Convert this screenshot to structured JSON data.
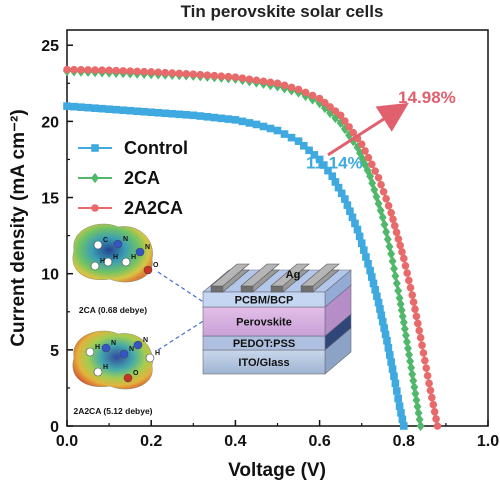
{
  "chart_data": {
    "type": "line",
    "title": "Tin perovskite solar cells",
    "xlabel": "Voltage (V)",
    "ylabel": "Current density (mA cm⁻²)",
    "xlim": [
      0,
      1.0
    ],
    "ylim": [
      0,
      26
    ],
    "xticks": [
      "0.0",
      "0.2",
      "0.4",
      "0.6",
      "0.8",
      "1.0"
    ],
    "yticks": [
      "0",
      "5",
      "10",
      "15",
      "20",
      "25"
    ],
    "grid": false,
    "legend_position": "top-left",
    "series": [
      {
        "name": "Control",
        "color": "#3fa9e0",
        "marker": "square",
        "x": [
          0,
          0.1,
          0.2,
          0.3,
          0.4,
          0.45,
          0.5,
          0.55,
          0.6,
          0.63,
          0.66,
          0.69,
          0.72,
          0.74,
          0.76,
          0.77,
          0.78,
          0.79,
          0.8
        ],
        "y": [
          21.0,
          20.8,
          20.6,
          20.4,
          20.1,
          19.8,
          19.4,
          18.7,
          17.5,
          16.4,
          14.9,
          12.9,
          10.2,
          8.1,
          5.6,
          4.2,
          2.8,
          1.3,
          0
        ]
      },
      {
        "name": "2CA",
        "color": "#4fb86a",
        "marker": "diamond",
        "x": [
          0,
          0.1,
          0.2,
          0.3,
          0.4,
          0.5,
          0.55,
          0.6,
          0.65,
          0.69,
          0.72,
          0.75,
          0.77,
          0.79,
          0.8,
          0.81,
          0.82,
          0.83,
          0.84
        ],
        "y": [
          23.3,
          23.2,
          23.1,
          23.0,
          22.8,
          22.3,
          21.9,
          21.2,
          19.9,
          18.3,
          16.4,
          13.7,
          11.3,
          8.4,
          6.8,
          5.1,
          3.4,
          1.7,
          0
        ]
      },
      {
        "name": "2A2CA",
        "color": "#e86a6a",
        "marker": "circle",
        "x": [
          0,
          0.1,
          0.2,
          0.3,
          0.4,
          0.5,
          0.55,
          0.6,
          0.65,
          0.7,
          0.74,
          0.77,
          0.8,
          0.82,
          0.84,
          0.85,
          0.86,
          0.87,
          0.88
        ],
        "y": [
          23.4,
          23.35,
          23.25,
          23.1,
          22.9,
          22.5,
          22.1,
          21.5,
          20.4,
          18.5,
          16.3,
          14.0,
          11.0,
          8.6,
          5.8,
          4.3,
          2.8,
          1.4,
          0
        ]
      }
    ],
    "annotations": [
      {
        "text": "11.14%",
        "color": "#3fa9e0",
        "x": 0.635,
        "y": 16.9
      },
      {
        "text": "14.98%",
        "color": "#e0606e",
        "x": 0.855,
        "y": 21.2
      }
    ],
    "arrow": {
      "from": [
        0.62,
        17.8
      ],
      "to": [
        0.8,
        21.0
      ],
      "color": "#e0606e"
    }
  },
  "inset": {
    "molecules": [
      {
        "caption": "2CA (0.68 debye)",
        "atoms": [
          "C",
          "N",
          "H",
          "H",
          "N",
          "O",
          "H"
        ]
      },
      {
        "caption": "2A2CA (5.12 debye)",
        "atoms": [
          "H",
          "N",
          "N",
          "N",
          "H",
          "O",
          "H"
        ]
      }
    ],
    "layers": {
      "electrode": "Ag",
      "etl": "PCBM/BCP",
      "absorber": "Perovskite",
      "htl": "PEDOT:PSS",
      "substrate": "ITO/Glass"
    }
  }
}
